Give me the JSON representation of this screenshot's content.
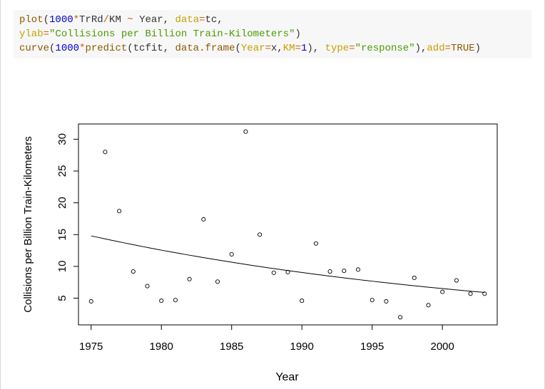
{
  "code": {
    "lines": [
      [
        {
          "t": "plot",
          "c": "#8f5902"
        },
        {
          "t": "(",
          "c": "#333333"
        },
        {
          "t": "1000",
          "c": "#0000cf"
        },
        {
          "t": "*",
          "c": "#ce5c00"
        },
        {
          "t": "TrRd",
          "c": "#333333"
        },
        {
          "t": "/",
          "c": "#ce5c00"
        },
        {
          "t": "KM ",
          "c": "#333333"
        },
        {
          "t": "~",
          "c": "#ce5c00"
        },
        {
          "t": " Year, ",
          "c": "#333333"
        },
        {
          "t": "data",
          "c": "#c4a000"
        },
        {
          "t": "=",
          "c": "#ce5c00"
        },
        {
          "t": "tc,",
          "c": "#333333"
        }
      ],
      [
        {
          "t": "ylab",
          "c": "#c4a000"
        },
        {
          "t": "=",
          "c": "#ce5c00"
        },
        {
          "t": "\"Collisions per Billion Train-Kilometers\"",
          "c": "#4e9a06"
        },
        {
          "t": ")",
          "c": "#333333"
        }
      ],
      [
        {
          "t": "curve",
          "c": "#8f5902"
        },
        {
          "t": "(",
          "c": "#333333"
        },
        {
          "t": "1000",
          "c": "#0000cf"
        },
        {
          "t": "*",
          "c": "#ce5c00"
        },
        {
          "t": "predict",
          "c": "#8f5902"
        },
        {
          "t": "(tcfit, ",
          "c": "#333333"
        },
        {
          "t": "data.frame",
          "c": "#8f5902"
        },
        {
          "t": "(",
          "c": "#333333"
        },
        {
          "t": "Year",
          "c": "#c4a000"
        },
        {
          "t": "=",
          "c": "#ce5c00"
        },
        {
          "t": "x,",
          "c": "#333333"
        },
        {
          "t": "KM",
          "c": "#c4a000"
        },
        {
          "t": "=",
          "c": "#ce5c00"
        },
        {
          "t": "1",
          "c": "#0000cf"
        },
        {
          "t": "), ",
          "c": "#333333"
        },
        {
          "t": "type",
          "c": "#c4a000"
        },
        {
          "t": "=",
          "c": "#ce5c00"
        },
        {
          "t": "\"response\"",
          "c": "#4e9a06"
        },
        {
          "t": "),",
          "c": "#333333"
        },
        {
          "t": "add",
          "c": "#c4a000"
        },
        {
          "t": "=",
          "c": "#ce5c00"
        },
        {
          "t": "TRUE",
          "c": "#8f5902"
        },
        {
          "t": ")",
          "c": "#333333"
        }
      ]
    ]
  },
  "chart_data": {
    "type": "scatter",
    "title": "",
    "xlabel": "Year",
    "ylabel": "Collisions per Billion Train-Kilometers",
    "xlim": [
      1975,
      2003
    ],
    "ylim": [
      2,
      31.2
    ],
    "x_ticks": [
      1975,
      1980,
      1985,
      1990,
      1995,
      2000
    ],
    "y_ticks": [
      5,
      10,
      15,
      20,
      25,
      30
    ],
    "grid": false,
    "points": [
      {
        "x": 1975,
        "y": 4.5
      },
      {
        "x": 1976,
        "y": 28.0
      },
      {
        "x": 1977,
        "y": 18.7
      },
      {
        "x": 1978,
        "y": 9.2
      },
      {
        "x": 1979,
        "y": 6.9
      },
      {
        "x": 1980,
        "y": 4.6
      },
      {
        "x": 1981,
        "y": 4.7
      },
      {
        "x": 1982,
        "y": 8.0
      },
      {
        "x": 1983,
        "y": 17.4
      },
      {
        "x": 1984,
        "y": 7.6
      },
      {
        "x": 1985,
        "y": 11.9
      },
      {
        "x": 1986,
        "y": 31.2
      },
      {
        "x": 1987,
        "y": 15.0
      },
      {
        "x": 1988,
        "y": 9.0
      },
      {
        "x": 1989,
        "y": 9.1
      },
      {
        "x": 1990,
        "y": 4.6
      },
      {
        "x": 1991,
        "y": 13.6
      },
      {
        "x": 1992,
        "y": 9.2
      },
      {
        "x": 1993,
        "y": 9.3
      },
      {
        "x": 1994,
        "y": 9.5
      },
      {
        "x": 1995,
        "y": 4.7
      },
      {
        "x": 1996,
        "y": 4.5
      },
      {
        "x": 1997,
        "y": 2.0
      },
      {
        "x": 1998,
        "y": 8.2
      },
      {
        "x": 1999,
        "y": 3.9
      },
      {
        "x": 2000,
        "y": 6.0
      },
      {
        "x": 2001,
        "y": 7.8
      },
      {
        "x": 2002,
        "y": 5.7
      },
      {
        "x": 2003,
        "y": 5.7
      }
    ],
    "fitted_curve": {
      "x": [
        1975,
        1980,
        1985,
        1990,
        1995,
        2000,
        2003
      ],
      "y": [
        14.8,
        12.57,
        10.8,
        9.15,
        7.8,
        6.6,
        5.9
      ]
    }
  }
}
